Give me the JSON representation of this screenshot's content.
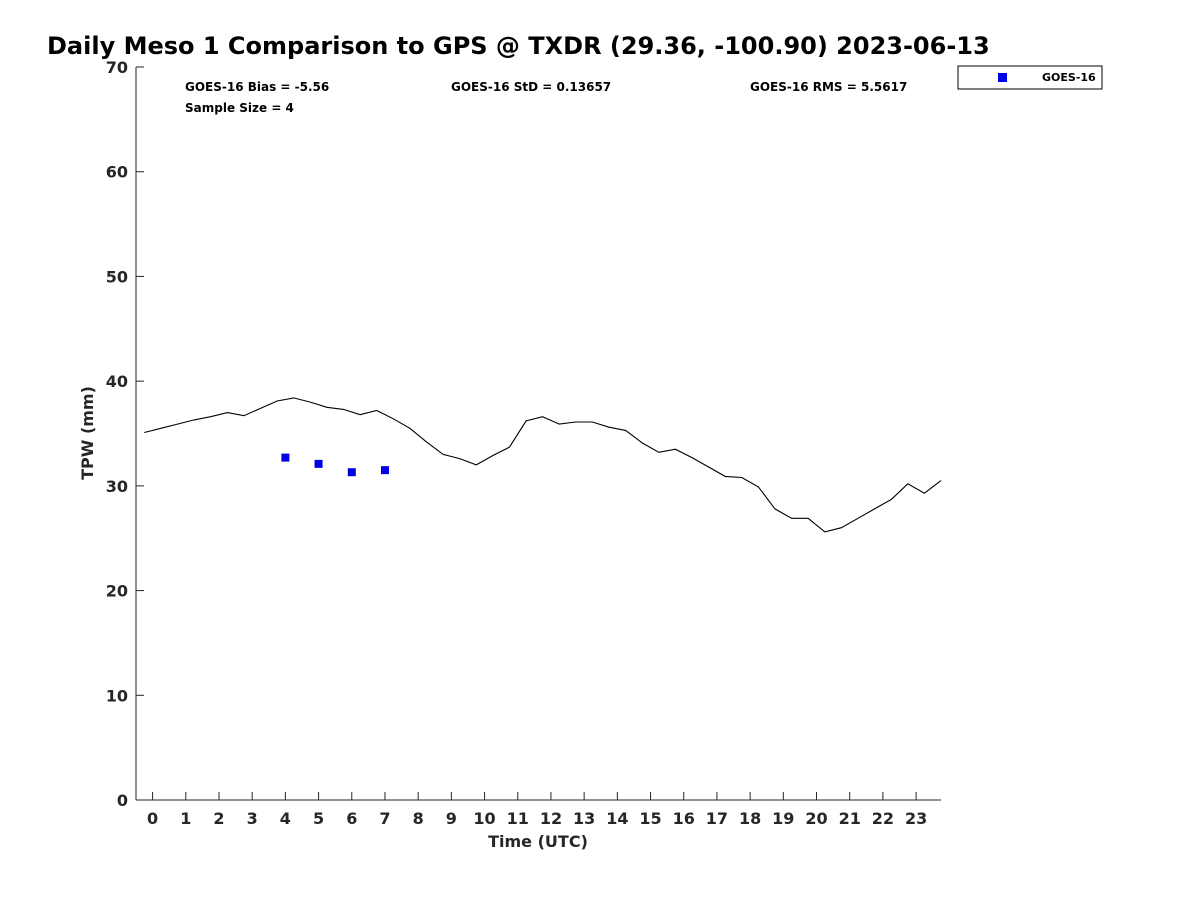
{
  "chart_data": {
    "type": "line",
    "title": "Daily Meso 1 Comparison to GPS @ TXDR (29.36, -100.90) 2023-06-13",
    "xlabel": "Time (UTC)",
    "ylabel": "TPW (mm)",
    "xlim": [
      -0.5,
      23.75
    ],
    "ylim": [
      0,
      70
    ],
    "x_ticks": [
      "0",
      "1",
      "2",
      "3",
      "4",
      "5",
      "6",
      "7",
      "8",
      "9",
      "10",
      "11",
      "12",
      "13",
      "14",
      "15",
      "16",
      "17",
      "18",
      "19",
      "20",
      "21",
      "22",
      "23"
    ],
    "y_ticks": [
      "0",
      "10",
      "20",
      "30",
      "40",
      "50",
      "60",
      "70"
    ],
    "grid": false,
    "legend_position": "top-right, outside",
    "series": [
      {
        "kind": "line",
        "color": "#000000",
        "x": [
          -0.25,
          0.25,
          0.75,
          1.25,
          1.75,
          2.25,
          2.75,
          3.25,
          3.75,
          4.25,
          4.75,
          5.25,
          5.75,
          6.25,
          6.75,
          7.25,
          7.75,
          8.25,
          8.75,
          9.25,
          9.75,
          10.25,
          10.75,
          11.25,
          11.75,
          12.25,
          12.75,
          13.25,
          13.75,
          14.25,
          14.75,
          15.25,
          15.75,
          16.25,
          16.75,
          17.25,
          17.75,
          18.25,
          18.75,
          19.25,
          19.75,
          20.25,
          20.75,
          21.25,
          21.75,
          22.25,
          22.75,
          23.25,
          23.75
        ],
        "y": [
          35.1,
          35.5,
          35.9,
          36.3,
          36.6,
          37.0,
          36.7,
          37.4,
          38.1,
          38.4,
          38.0,
          37.5,
          37.3,
          36.8,
          37.2,
          36.4,
          35.5,
          34.2,
          33.0,
          32.6,
          32.0,
          32.9,
          33.7,
          36.2,
          36.6,
          35.9,
          36.1,
          36.1,
          35.6,
          35.3,
          34.1,
          33.2,
          33.5,
          32.7,
          31.8,
          30.9,
          30.8,
          29.9,
          27.8,
          26.9,
          26.9,
          25.6,
          26.0,
          26.9,
          27.8,
          28.7,
          30.2,
          29.3,
          30.5
        ]
      },
      {
        "kind": "scatter",
        "name": "GOES-16",
        "color": "#0000e6",
        "x": [
          4,
          5,
          6,
          7
        ],
        "y": [
          32.7,
          32.1,
          31.3,
          31.5
        ]
      }
    ],
    "annotations": [
      "GOES-16 Bias = -5.56",
      "GOES-16 StD = 0.13657",
      "GOES-16 RMS = 5.5617",
      "Sample Size = 4"
    ]
  }
}
